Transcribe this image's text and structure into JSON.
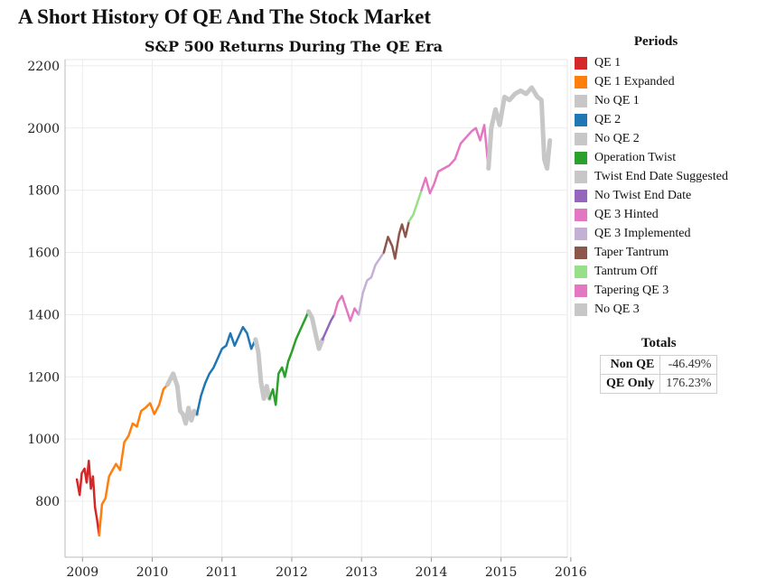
{
  "title": "A Short History Of QE And The Stock Market",
  "chart_data": {
    "type": "line",
    "title": "S&P 500 Returns During The QE Era",
    "xlabel": "",
    "ylabel": "",
    "xlim": [
      2008.75,
      2015.95
    ],
    "ylim": [
      620,
      2220
    ],
    "x_ticks": [
      "2009",
      "2010",
      "2011",
      "2012",
      "2013",
      "2014",
      "2015",
      "2016"
    ],
    "y_ticks": [
      "800",
      "1000",
      "1200",
      "1400",
      "1600",
      "1800",
      "2000",
      "2200"
    ],
    "grid": true,
    "legend_position": "right",
    "legend_title": "Periods",
    "series": [
      {
        "name": "QE 1",
        "color": "#d62728",
        "points": [
          [
            2008.92,
            870
          ],
          [
            2008.96,
            820
          ],
          [
            2008.99,
            890
          ],
          [
            2009.03,
            905
          ],
          [
            2009.06,
            860
          ],
          [
            2009.09,
            930
          ],
          [
            2009.12,
            840
          ],
          [
            2009.15,
            880
          ],
          [
            2009.18,
            780
          ],
          [
            2009.21,
            740
          ],
          [
            2009.24,
            690
          ]
        ]
      },
      {
        "name": "QE 1 Expanded",
        "color": "#ff7f0e",
        "points": [
          [
            2009.24,
            690
          ],
          [
            2009.28,
            790
          ],
          [
            2009.33,
            810
          ],
          [
            2009.38,
            880
          ],
          [
            2009.43,
            900
          ],
          [
            2009.48,
            920
          ],
          [
            2009.54,
            900
          ],
          [
            2009.6,
            990
          ],
          [
            2009.66,
            1010
          ],
          [
            2009.72,
            1050
          ],
          [
            2009.78,
            1040
          ],
          [
            2009.84,
            1090
          ],
          [
            2009.9,
            1100
          ],
          [
            2009.97,
            1115
          ],
          [
            2010.03,
            1080
          ],
          [
            2010.1,
            1110
          ],
          [
            2010.16,
            1160
          ],
          [
            2010.22,
            1175
          ]
        ]
      },
      {
        "name": "No QE 1",
        "color": "#c7c7c7",
        "points": [
          [
            2010.22,
            1175
          ],
          [
            2010.3,
            1210
          ],
          [
            2010.36,
            1170
          ],
          [
            2010.4,
            1090
          ],
          [
            2010.44,
            1080
          ],
          [
            2010.48,
            1050
          ],
          [
            2010.52,
            1100
          ],
          [
            2010.56,
            1060
          ],
          [
            2010.6,
            1090
          ],
          [
            2010.64,
            1080
          ]
        ]
      },
      {
        "name": "QE 2",
        "color": "#1f77b4",
        "points": [
          [
            2010.64,
            1080
          ],
          [
            2010.7,
            1140
          ],
          [
            2010.76,
            1180
          ],
          [
            2010.82,
            1210
          ],
          [
            2010.88,
            1230
          ],
          [
            2010.94,
            1260
          ],
          [
            2011.0,
            1290
          ],
          [
            2011.06,
            1300
          ],
          [
            2011.12,
            1340
          ],
          [
            2011.18,
            1300
          ],
          [
            2011.24,
            1330
          ],
          [
            2011.3,
            1360
          ],
          [
            2011.36,
            1340
          ],
          [
            2011.42,
            1290
          ],
          [
            2011.48,
            1320
          ]
        ]
      },
      {
        "name": "No QE 2",
        "color": "#c7c7c7",
        "points": [
          [
            2011.48,
            1320
          ],
          [
            2011.52,
            1280
          ],
          [
            2011.56,
            1180
          ],
          [
            2011.6,
            1130
          ],
          [
            2011.64,
            1170
          ],
          [
            2011.68,
            1130
          ]
        ]
      },
      {
        "name": "Operation Twist",
        "color": "#2ca02c",
        "points": [
          [
            2011.68,
            1130
          ],
          [
            2011.73,
            1160
          ],
          [
            2011.77,
            1110
          ],
          [
            2011.81,
            1210
          ],
          [
            2011.86,
            1230
          ],
          [
            2011.9,
            1200
          ],
          [
            2011.95,
            1250
          ],
          [
            2012.0,
            1280
          ],
          [
            2012.06,
            1320
          ],
          [
            2012.12,
            1350
          ],
          [
            2012.18,
            1380
          ],
          [
            2012.24,
            1410
          ]
        ]
      },
      {
        "name": "Twist End Date Suggested",
        "color": "#c7c7c7",
        "points": [
          [
            2012.24,
            1410
          ],
          [
            2012.29,
            1390
          ],
          [
            2012.34,
            1340
          ],
          [
            2012.39,
            1290
          ],
          [
            2012.44,
            1320
          ]
        ]
      },
      {
        "name": "No Twist End Date",
        "color": "#9467bd",
        "points": [
          [
            2012.44,
            1320
          ],
          [
            2012.5,
            1350
          ],
          [
            2012.56,
            1380
          ],
          [
            2012.61,
            1400
          ]
        ]
      },
      {
        "name": "QE 3 Hinted",
        "color": "#e377c2",
        "points": [
          [
            2012.61,
            1400
          ],
          [
            2012.66,
            1440
          ],
          [
            2012.72,
            1460
          ],
          [
            2012.78,
            1420
          ],
          [
            2012.84,
            1380
          ],
          [
            2012.9,
            1420
          ],
          [
            2012.96,
            1400
          ]
        ]
      },
      {
        "name": "QE 3 Implemented",
        "color": "#c5b0d5",
        "points": [
          [
            2012.96,
            1400
          ],
          [
            2013.02,
            1470
          ],
          [
            2013.08,
            1510
          ],
          [
            2013.14,
            1520
          ],
          [
            2013.2,
            1560
          ],
          [
            2013.26,
            1580
          ],
          [
            2013.32,
            1600
          ]
        ]
      },
      {
        "name": "Taper Tantrum",
        "color": "#8c564b",
        "points": [
          [
            2013.32,
            1600
          ],
          [
            2013.38,
            1650
          ],
          [
            2013.44,
            1620
          ],
          [
            2013.48,
            1580
          ],
          [
            2013.54,
            1660
          ],
          [
            2013.58,
            1690
          ],
          [
            2013.63,
            1650
          ],
          [
            2013.68,
            1700
          ]
        ]
      },
      {
        "name": "Tantrum Off",
        "color": "#98df8a",
        "points": [
          [
            2013.68,
            1700
          ],
          [
            2013.74,
            1720
          ],
          [
            2013.8,
            1760
          ],
          [
            2013.86,
            1800
          ]
        ]
      },
      {
        "name": "Tapering QE 3",
        "color": "#e377c2",
        "points": [
          [
            2013.86,
            1800
          ],
          [
            2013.92,
            1840
          ],
          [
            2013.98,
            1790
          ],
          [
            2014.04,
            1820
          ],
          [
            2014.1,
            1860
          ],
          [
            2014.18,
            1870
          ],
          [
            2014.26,
            1880
          ],
          [
            2014.34,
            1900
          ],
          [
            2014.42,
            1950
          ],
          [
            2014.5,
            1970
          ],
          [
            2014.58,
            1990
          ],
          [
            2014.64,
            2000
          ],
          [
            2014.7,
            1960
          ],
          [
            2014.76,
            2010
          ],
          [
            2014.82,
            1870
          ]
        ]
      },
      {
        "name": "No QE 3",
        "color": "#c7c7c7",
        "points": [
          [
            2014.82,
            1870
          ],
          [
            2014.86,
            2000
          ],
          [
            2014.92,
            2060
          ],
          [
            2014.98,
            2010
          ],
          [
            2015.05,
            2100
          ],
          [
            2015.12,
            2090
          ],
          [
            2015.2,
            2110
          ],
          [
            2015.28,
            2120
          ],
          [
            2015.36,
            2110
          ],
          [
            2015.44,
            2130
          ],
          [
            2015.52,
            2100
          ],
          [
            2015.58,
            2090
          ],
          [
            2015.62,
            1900
          ],
          [
            2015.66,
            1870
          ],
          [
            2015.7,
            1960
          ]
        ]
      }
    ]
  },
  "totals": {
    "title": "Totals",
    "rows": [
      {
        "label": "Non QE",
        "value": "-46.49%"
      },
      {
        "label": "QE Only",
        "value": "176.23%"
      }
    ]
  }
}
